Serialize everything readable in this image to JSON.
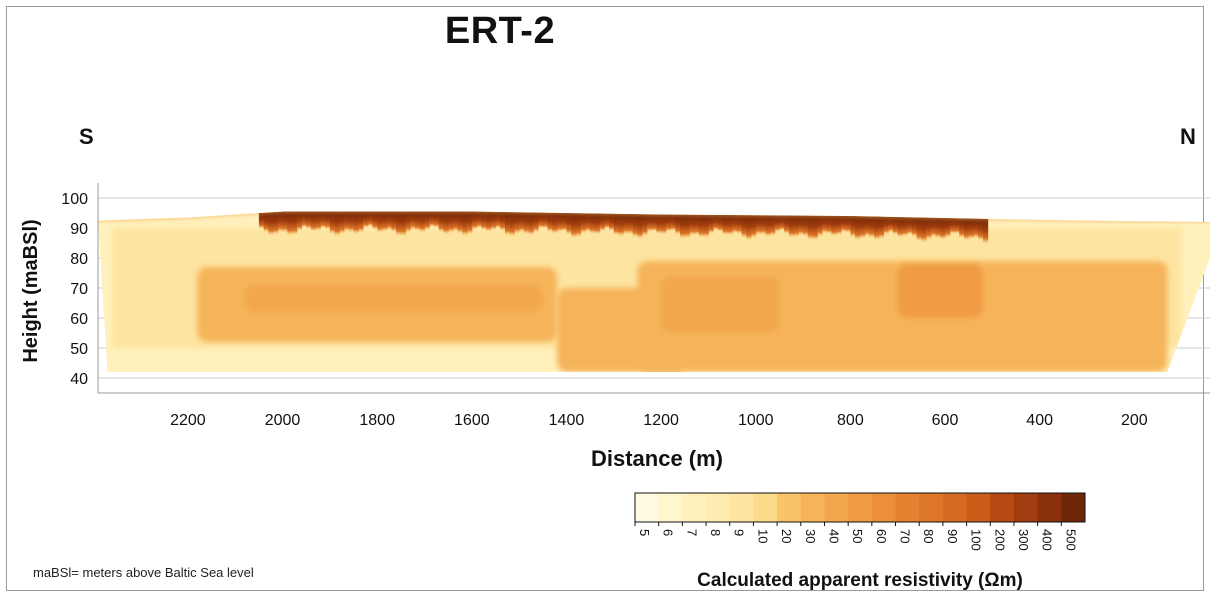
{
  "chart_data": {
    "type": "heatmap",
    "title": "ERT-2",
    "xlabel": "Distance (m)",
    "ylabel": "Height (maBSl)",
    "x_axis_reversed": true,
    "xlim": [
      2390,
      40
    ],
    "ylim": [
      35,
      105
    ],
    "x_ticks": [
      2200,
      2000,
      1800,
      1600,
      1400,
      1200,
      1000,
      800,
      600,
      400,
      200
    ],
    "y_ticks": [
      100,
      90,
      80,
      70,
      60,
      50,
      40
    ],
    "grid": true,
    "orientation_left": "S",
    "orientation_right": "N",
    "note": "maBSl= meters above Baltic Sea level",
    "colorbar": {
      "title": "Calculated apparent resistivity (Ωm)",
      "labels": [
        "5",
        "6",
        "7",
        "8",
        "9",
        "10",
        "20",
        "30",
        "40",
        "50",
        "60",
        "70",
        "80",
        "90",
        "100",
        "200",
        "300",
        "400",
        "500"
      ],
      "colors": [
        "#fffbe3",
        "#fff6cf",
        "#fff0bc",
        "#ffebb0",
        "#fde4a0",
        "#fbda8b",
        "#f9c36a",
        "#f6b45a",
        "#f3a74c",
        "#ef9b42",
        "#eb8f3a",
        "#e48230",
        "#dd7629",
        "#d56a22",
        "#cb5d1b",
        "#b74a12",
        "#a03c0d",
        "#8a300a",
        "#6d2607"
      ]
    },
    "profile": {
      "surface_height": [
        [
          2390,
          92.5
        ],
        [
          2200,
          93.5
        ],
        [
          2000,
          95.5
        ],
        [
          1600,
          95.5
        ],
        [
          1200,
          94.5
        ],
        [
          800,
          94
        ],
        [
          500,
          93
        ],
        [
          300,
          92.5
        ],
        [
          40,
          92
        ]
      ],
      "bottom_height": [
        [
          2370,
          42
        ],
        [
          1200,
          42
        ],
        [
          400,
          42
        ],
        [
          130,
          42
        ],
        [
          40,
          80
        ]
      ],
      "shallow_high_resistivity_zone": {
        "x_range": [
          2050,
          520
        ],
        "height_range": [
          86,
          95.5
        ],
        "value_range_ohm_m": [
          100,
          500
        ]
      },
      "main_body": {
        "value_range_ohm_m": [
          7,
          20
        ]
      },
      "conductive_layers": [
        {
          "x_range": [
            2180,
            1420
          ],
          "height_range": [
            52,
            77
          ],
          "value_ohm_m": 30
        },
        {
          "x_range": [
            1420,
            1150
          ],
          "height_range": [
            42,
            70
          ],
          "value_ohm_m": 30
        },
        {
          "x_range": [
            1250,
            130
          ],
          "height_range": [
            42,
            79
          ],
          "value_ohm_m": 30
        },
        {
          "x_range": [
            2080,
            1450
          ],
          "height_range": [
            62,
            71
          ],
          "value_ohm_m": 40
        },
        {
          "x_range": [
            1200,
            950
          ],
          "height_range": [
            55,
            74
          ],
          "value_ohm_m": 40
        },
        {
          "x_range": [
            700,
            520
          ],
          "height_range": [
            60,
            78
          ],
          "value_ohm_m": 50
        }
      ]
    }
  }
}
